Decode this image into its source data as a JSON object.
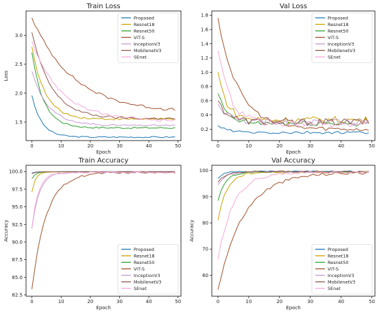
{
  "colors": {
    "Proposed": "#1f77b4",
    "Resnet18": "#c8a200",
    "Resnet50": "#2ca02c",
    "ViT-S": "#a0522d",
    "InceptionV3": "#c39bd3",
    "MobilenetV3": "#8c564b",
    "SEnet": "#f7a8d8"
  },
  "chart_data": [
    {
      "type": "line",
      "title": "Train Loss",
      "xlabel": "Epoch",
      "ylabel": "Loss",
      "xlim": [
        -2,
        51
      ],
      "ylim": [
        1.18,
        3.42
      ],
      "xticks": [
        0,
        10,
        20,
        30,
        40,
        50
      ],
      "yticks": [
        1.5,
        2.0,
        2.5,
        3.0
      ],
      "ytick_labels": [
        "1.5",
        "2.0",
        "2.5",
        "3.0"
      ],
      "legend": "top-right",
      "series": [
        {
          "name": "Proposed",
          "start": 1.96,
          "end": 1.24,
          "rate": 0.3,
          "noise": 0.012
        },
        {
          "name": "Resnet18",
          "start": 2.8,
          "end": 1.55,
          "rate": 0.22,
          "noise": 0.018
        },
        {
          "name": "Resnet50",
          "start": 2.7,
          "end": 1.4,
          "rate": 0.25,
          "noise": 0.015
        },
        {
          "name": "ViT-S",
          "start": 3.3,
          "end": 1.66,
          "rate": 0.07,
          "noise": 0.025
        },
        {
          "name": "InceptionV3",
          "start": 2.38,
          "end": 1.44,
          "rate": 0.18,
          "noise": 0.015
        },
        {
          "name": "MobilenetV3",
          "start": 3.05,
          "end": 1.56,
          "rate": 0.15,
          "noise": 0.02
        },
        {
          "name": "SEnet",
          "start": 2.9,
          "end": 1.52,
          "rate": 0.1,
          "noise": 0.025
        }
      ]
    },
    {
      "type": "line",
      "title": "Val Loss",
      "xlabel": "Epoch",
      "ylabel": "",
      "xlim": [
        -2,
        51
      ],
      "ylim": [
        0.04,
        1.86
      ],
      "xticks": [
        0,
        10,
        20,
        30,
        40,
        50
      ],
      "yticks": [
        0.2,
        0.4,
        0.6,
        0.8,
        1.0,
        1.2,
        1.4,
        1.6,
        1.8
      ],
      "ytick_labels": [
        "0.2",
        "0.4",
        "0.6",
        "0.8",
        "1.0",
        "1.2",
        "1.4",
        "1.6",
        "1.8"
      ],
      "legend": "top-right",
      "series": [
        {
          "name": "Proposed",
          "start": 0.25,
          "end": 0.15,
          "rate": 0.3,
          "noise": 0.02
        },
        {
          "name": "Resnet18",
          "start": 1.0,
          "end": 0.33,
          "rate": 0.35,
          "noise": 0.05
        },
        {
          "name": "Resnet50",
          "start": 0.7,
          "end": 0.28,
          "rate": 0.35,
          "noise": 0.04
        },
        {
          "name": "ViT-S",
          "start": 1.76,
          "end": 0.2,
          "rate": 0.15,
          "noise": 0.03
        },
        {
          "name": "InceptionV3",
          "start": 0.55,
          "end": 0.3,
          "rate": 0.3,
          "noise": 0.05
        },
        {
          "name": "MobilenetV3",
          "start": 0.6,
          "end": 0.3,
          "rate": 0.3,
          "noise": 0.05
        },
        {
          "name": "SEnet",
          "start": 1.3,
          "end": 0.27,
          "rate": 0.25,
          "noise": 0.05
        }
      ]
    },
    {
      "type": "line",
      "title": "Train Accuracy",
      "xlabel": "Epoch",
      "ylabel": "Accuracy",
      "xlim": [
        -2,
        51
      ],
      "ylim": [
        82.3,
        100.9
      ],
      "xticks": [
        0,
        10,
        20,
        30,
        40,
        50
      ],
      "yticks": [
        82.5,
        85.0,
        87.5,
        90.0,
        92.5,
        95.0,
        97.5,
        100.0
      ],
      "ytick_labels": [
        "82.5",
        "85.0",
        "87.5",
        "90.0",
        "92.5",
        "95.0",
        "97.5",
        "100.0"
      ],
      "legend": "bottom-right",
      "series": [
        {
          "name": "Proposed",
          "start": 99.8,
          "end": 99.98,
          "rate": 0.8,
          "noise": 0
        },
        {
          "name": "Resnet18",
          "start": 97.1,
          "end": 99.95,
          "rate": 0.8,
          "noise": 0
        },
        {
          "name": "Resnet50",
          "start": 99.0,
          "end": 99.98,
          "rate": 0.8,
          "noise": 0
        },
        {
          "name": "ViT-S",
          "start": 83.3,
          "end": 99.9,
          "rate": 0.2,
          "noise": 0.15
        },
        {
          "name": "InceptionV3",
          "start": 91.9,
          "end": 99.9,
          "rate": 0.4,
          "noise": 0.1
        },
        {
          "name": "MobilenetV3",
          "start": 99.7,
          "end": 99.98,
          "rate": 0.8,
          "noise": 0
        },
        {
          "name": "SEnet",
          "start": 92.0,
          "end": 99.9,
          "rate": 0.45,
          "noise": 0.1
        }
      ]
    },
    {
      "type": "line",
      "title": "Val Accuracy",
      "xlabel": "Epoch",
      "ylabel": "Accuracy",
      "xlim": [
        -2,
        51
      ],
      "ylim": [
        52,
        102
      ],
      "xticks": [
        0,
        10,
        20,
        30,
        40,
        50
      ],
      "yticks": [
        60,
        70,
        80,
        90,
        100
      ],
      "ytick_labels": [
        "60",
        "70",
        "80",
        "90",
        "100"
      ],
      "legend": "bottom-right",
      "series": [
        {
          "name": "Proposed",
          "start": 97.0,
          "end": 99.7,
          "rate": 0.5,
          "noise": 0.2
        },
        {
          "name": "Resnet18",
          "start": 81.0,
          "end": 99.3,
          "rate": 0.35,
          "noise": 0.4
        },
        {
          "name": "Resnet50",
          "start": 88.5,
          "end": 99.5,
          "rate": 0.4,
          "noise": 0.3
        },
        {
          "name": "ViT-S",
          "start": 54.5,
          "end": 99.3,
          "rate": 0.12,
          "noise": 0.6
        },
        {
          "name": "InceptionV3",
          "start": 94.5,
          "end": 99.5,
          "rate": 0.4,
          "noise": 0.3
        },
        {
          "name": "MobilenetV3",
          "start": 95.5,
          "end": 99.6,
          "rate": 0.4,
          "noise": 0.3
        },
        {
          "name": "SEnet",
          "start": 66.0,
          "end": 99.2,
          "rate": 0.2,
          "noise": 0.6
        }
      ]
    }
  ]
}
